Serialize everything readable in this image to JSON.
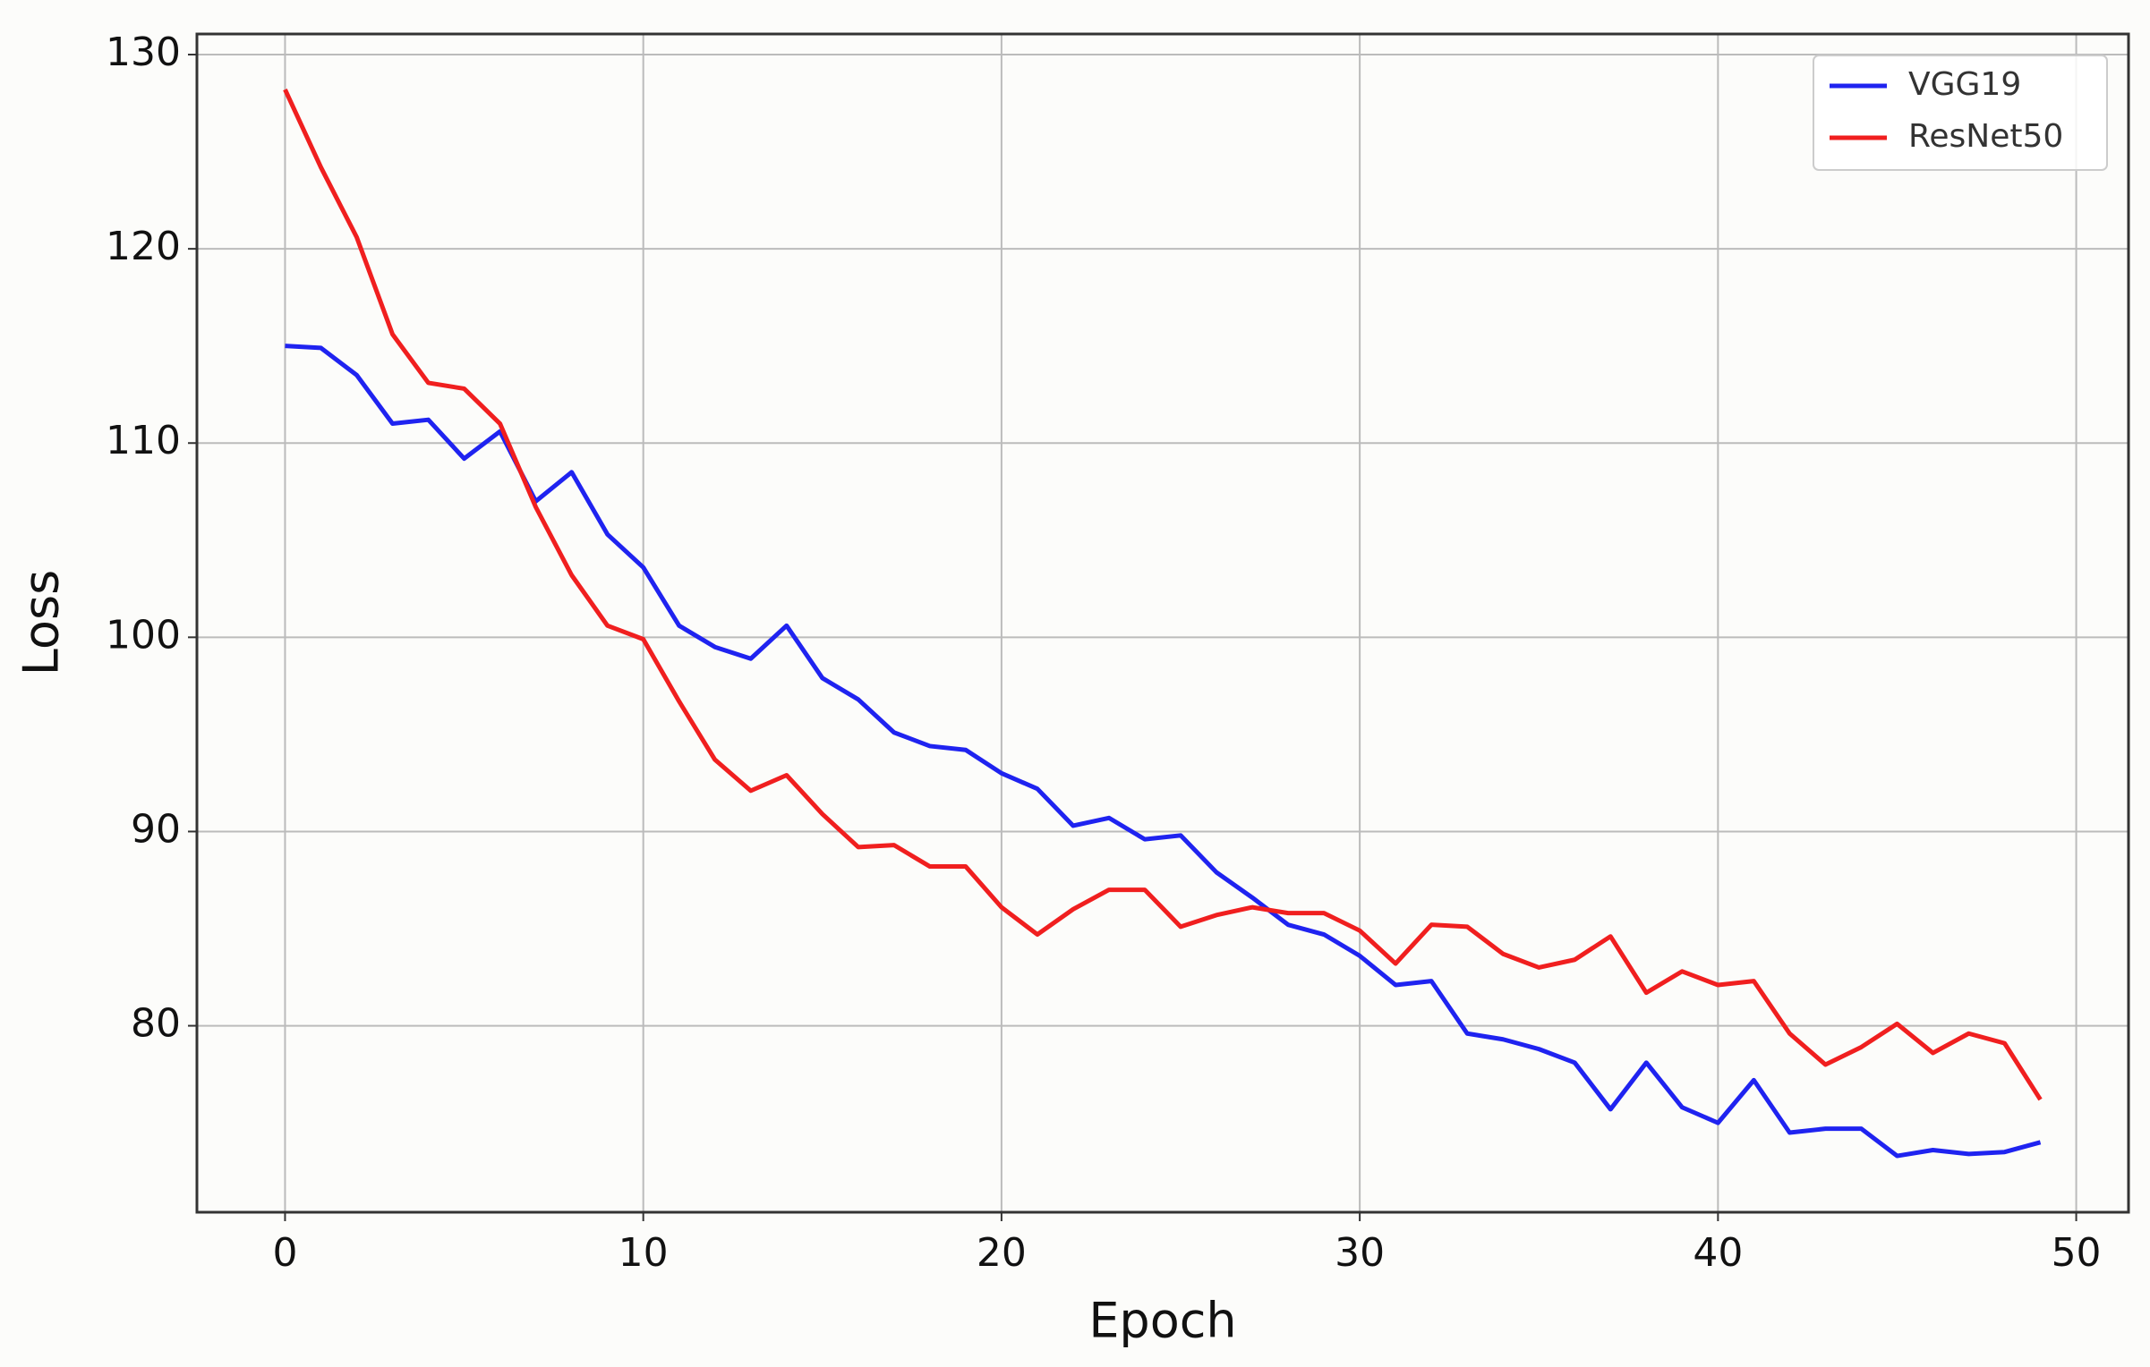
{
  "chart_data": {
    "type": "line",
    "x_label": "Epoch",
    "y_label": "Loss",
    "x": [
      0,
      1,
      2,
      3,
      4,
      5,
      6,
      7,
      8,
      9,
      10,
      11,
      12,
      13,
      14,
      15,
      16,
      17,
      18,
      19,
      20,
      21,
      22,
      23,
      24,
      25,
      26,
      27,
      28,
      29,
      30,
      31,
      32,
      33,
      34,
      35,
      36,
      37,
      38,
      39,
      40,
      41,
      42,
      43,
      44,
      45,
      46,
      47,
      48,
      49
    ],
    "series": [
      {
        "name": "VGG19",
        "color": "#1f23f0",
        "values": [
          115.0,
          114.9,
          113.5,
          111.0,
          111.2,
          109.2,
          110.6,
          107.0,
          108.5,
          105.3,
          103.6,
          100.6,
          99.5,
          98.9,
          100.6,
          97.9,
          96.8,
          95.1,
          94.4,
          94.2,
          93.0,
          92.2,
          90.3,
          90.7,
          89.6,
          89.8,
          87.9,
          86.6,
          85.2,
          84.7,
          83.6,
          82.1,
          82.3,
          79.6,
          79.3,
          78.8,
          78.1,
          75.7,
          78.1,
          75.8,
          75.0,
          77.2,
          74.5,
          74.7,
          74.7,
          73.3,
          73.6,
          73.4,
          73.5,
          74.0
        ]
      },
      {
        "name": "ResNet50",
        "color": "#f01f1f",
        "values": [
          128.2,
          124.2,
          120.6,
          115.6,
          113.1,
          112.8,
          111.0,
          106.7,
          103.2,
          100.6,
          99.9,
          96.7,
          93.7,
          92.1,
          92.9,
          90.9,
          89.2,
          89.3,
          88.2,
          88.2,
          86.1,
          84.7,
          86.0,
          87.0,
          87.0,
          85.1,
          85.7,
          86.1,
          85.8,
          85.8,
          84.9,
          83.2,
          85.2,
          85.1,
          83.7,
          83.0,
          83.4,
          84.6,
          81.7,
          82.8,
          82.1,
          82.3,
          79.6,
          78.0,
          78.9,
          80.1,
          78.6,
          79.6,
          79.1,
          76.2
        ]
      }
    ],
    "xlim": [
      -2.46,
      51.46
    ],
    "ylim": [
      70.4,
      131.06
    ],
    "xticks": [
      0,
      10,
      20,
      30,
      40,
      50
    ],
    "yticks": [
      80,
      90,
      100,
      110,
      120,
      130
    ],
    "grid": true,
    "legend": "upper right"
  }
}
